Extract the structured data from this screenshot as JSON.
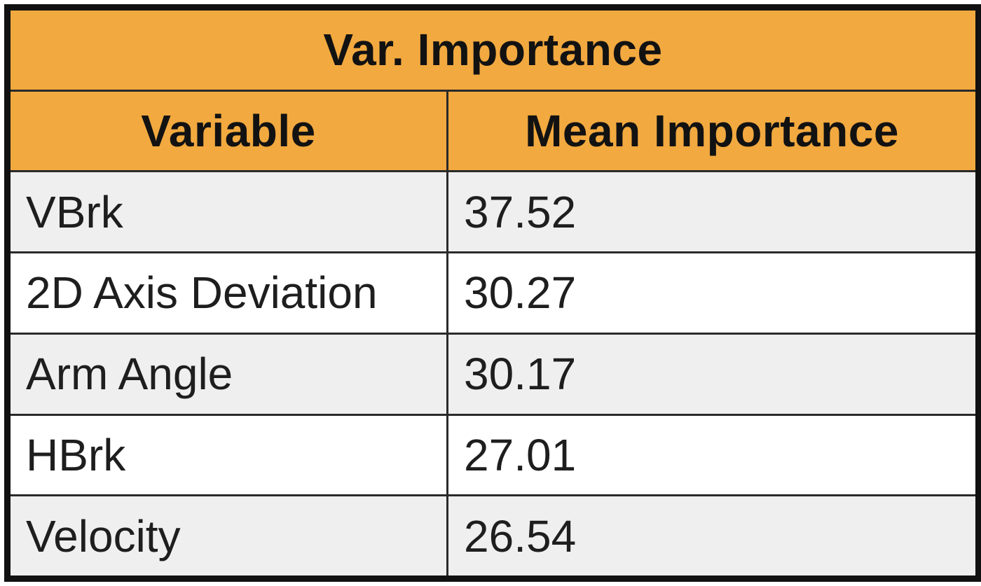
{
  "table": {
    "title": "Var. Importance",
    "columns": [
      "Variable",
      "Mean Importance"
    ],
    "rows": [
      {
        "variable": "VBrk",
        "importance": "37.52"
      },
      {
        "variable": "2D Axis Deviation",
        "importance": "30.27"
      },
      {
        "variable": "Arm Angle",
        "importance": "30.17"
      },
      {
        "variable": "HBrk",
        "importance": "27.01"
      },
      {
        "variable": "Velocity",
        "importance": "26.54"
      }
    ]
  },
  "colors": {
    "header_fill": "#f2a93f",
    "border": "#111111",
    "row_shade": "#efefef",
    "row_plain": "#ffffff"
  }
}
